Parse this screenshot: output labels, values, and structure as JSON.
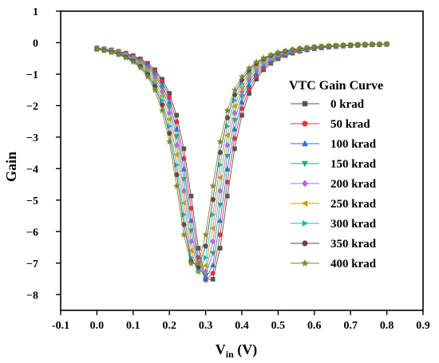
{
  "chart_data": {
    "type": "line",
    "title": "",
    "xlabel_main": "V",
    "xlabel_sub": "in",
    "xlabel_unit": " (V)",
    "ylabel": "Gain",
    "xlim": [
      -0.1,
      0.9
    ],
    "ylim": [
      -8.5,
      1
    ],
    "x_ticks": [
      -0.1,
      0.0,
      0.1,
      0.2,
      0.3,
      0.4,
      0.5,
      0.6,
      0.7,
      0.8,
      0.9
    ],
    "x_tick_labels": [
      "-0.1",
      "0.0",
      "0.1",
      "0.2",
      "0.3",
      "0.4",
      "0.5",
      "0.6",
      "0.7",
      "0.8",
      "0.9"
    ],
    "y_ticks": [
      1,
      0,
      -1,
      -2,
      -3,
      -4,
      -5,
      -6,
      -7,
      -8
    ],
    "y_tick_labels": [
      "1",
      "0",
      "−1",
      "−2",
      "−3",
      "−4",
      "−5",
      "−6",
      "−7",
      "−8"
    ],
    "grid": false,
    "legend_title": "VTC Gain Curve",
    "legend_position": "right",
    "x_step": 0.02,
    "x_start": 0.0,
    "x_end": 0.8,
    "series": [
      {
        "name": "0 krad",
        "color": "#555555",
        "marker": "square",
        "min_x": 0.31,
        "min_y": -7.6
      },
      {
        "name": "50 krad",
        "color": "#e8303a",
        "marker": "circle",
        "min_x": 0.305,
        "min_y": -7.55
      },
      {
        "name": "100 krad",
        "color": "#2f6fd6",
        "marker": "triangle-up",
        "min_x": 0.3,
        "min_y": -7.5
      },
      {
        "name": "150 krad",
        "color": "#2fa37a",
        "marker": "triangle-down",
        "min_x": 0.295,
        "min_y": -7.4
      },
      {
        "name": "200 krad",
        "color": "#b36ae0",
        "marker": "diamond",
        "min_x": 0.29,
        "min_y": -7.35
      },
      {
        "name": "250 krad",
        "color": "#c9a100",
        "marker": "triangle-left",
        "min_x": 0.285,
        "min_y": -7.3
      },
      {
        "name": "300 krad",
        "color": "#19b8c9",
        "marker": "triangle-right",
        "min_x": 0.28,
        "min_y": -7.25
      },
      {
        "name": "350 krad",
        "color": "#6b3f52",
        "marker": "hexagon",
        "min_x": 0.275,
        "min_y": -7.15
      },
      {
        "name": "400 krad",
        "color": "#7a8a2a",
        "marker": "star",
        "min_x": 0.27,
        "min_y": -7.1
      }
    ],
    "curve_width": 0.058
  }
}
